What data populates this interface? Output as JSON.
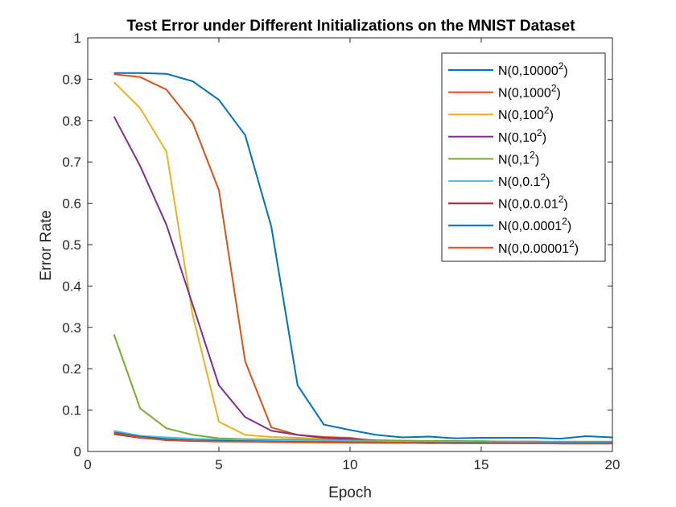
{
  "chart_data": {
    "type": "line",
    "title": "Test Error under Different Initializations on the MNIST Dataset",
    "xlabel": "Epoch",
    "ylabel": "Error Rate",
    "xlim": [
      0,
      20
    ],
    "ylim": [
      0,
      1
    ],
    "xticks": [
      0,
      5,
      10,
      15,
      20
    ],
    "yticks": [
      0,
      0.1,
      0.2,
      0.3,
      0.4,
      0.5,
      0.6,
      0.7,
      0.8,
      0.9,
      1
    ],
    "ytick_labels": [
      "0",
      "0.1",
      "0.2",
      "0.3",
      "0.4",
      "0.5",
      "0.6",
      "0.7",
      "0.8",
      "0.9",
      "1"
    ],
    "grid": false,
    "legend_position": "top-right",
    "x": [
      1,
      2,
      3,
      4,
      5,
      6,
      7,
      8,
      9,
      10,
      11,
      12,
      13,
      14,
      15,
      16,
      17,
      18,
      19,
      20
    ],
    "series": [
      {
        "name": "N(0,10000",
        "sup": "2",
        "suffix": ")",
        "color": "#0072BD",
        "values": [
          0.915,
          0.915,
          0.913,
          0.895,
          0.85,
          0.765,
          0.543,
          0.16,
          0.065,
          0.052,
          0.04,
          0.034,
          0.036,
          0.032,
          0.033,
          0.033,
          0.033,
          0.031,
          0.037,
          0.034
        ]
      },
      {
        "name": "N(0,1000",
        "sup": "2",
        "suffix": ")",
        "color": "#D95319",
        "values": [
          0.912,
          0.905,
          0.875,
          0.795,
          0.632,
          0.218,
          0.058,
          0.04,
          0.035,
          0.033,
          0.025,
          0.022,
          0.02,
          0.022,
          0.021,
          0.021,
          0.02,
          0.02,
          0.021,
          0.021
        ]
      },
      {
        "name": "N(0,100",
        "sup": "2",
        "suffix": ")",
        "color": "#EDB120",
        "values": [
          0.893,
          0.83,
          0.725,
          0.33,
          0.072,
          0.04,
          0.035,
          0.033,
          0.031,
          0.029,
          0.026,
          0.025,
          0.024,
          0.024,
          0.024,
          0.023,
          0.024,
          0.023,
          0.023,
          0.023
        ]
      },
      {
        "name": "N(0,10",
        "sup": "2",
        "suffix": ")",
        "color": "#7E2F8E",
        "values": [
          0.81,
          0.69,
          0.548,
          0.355,
          0.16,
          0.083,
          0.05,
          0.04,
          0.033,
          0.03,
          0.027,
          0.026,
          0.025,
          0.025,
          0.024,
          0.024,
          0.024,
          0.023,
          0.023,
          0.022
        ]
      },
      {
        "name": "N(0,1",
        "sup": "2",
        "suffix": ")",
        "color": "#77AC30",
        "values": [
          0.283,
          0.104,
          0.056,
          0.04,
          0.032,
          0.03,
          0.029,
          0.029,
          0.028,
          0.027,
          0.026,
          0.026,
          0.025,
          0.025,
          0.025,
          0.024,
          0.024,
          0.024,
          0.024,
          0.024
        ]
      },
      {
        "name": "N(0,0.1",
        "sup": "2",
        "suffix": ")",
        "color": "#4DBEEE",
        "values": [
          0.05,
          0.038,
          0.034,
          0.031,
          0.029,
          0.028,
          0.027,
          0.026,
          0.025,
          0.025,
          0.024,
          0.023,
          0.023,
          0.023,
          0.022,
          0.022,
          0.022,
          0.022,
          0.022,
          0.021
        ]
      },
      {
        "name": "N(0,0.0.01",
        "sup": "2",
        "suffix": ")",
        "color": "#A2142F",
        "values": [
          0.042,
          0.033,
          0.028,
          0.026,
          0.025,
          0.024,
          0.023,
          0.023,
          0.022,
          0.022,
          0.021,
          0.021,
          0.021,
          0.02,
          0.02,
          0.02,
          0.02,
          0.02,
          0.02,
          0.02
        ]
      },
      {
        "name": "N(0,0.0001",
        "sup": "2",
        "suffix": ")",
        "color": "#0072BD",
        "values": [
          0.046,
          0.036,
          0.03,
          0.027,
          0.026,
          0.025,
          0.024,
          0.023,
          0.023,
          0.022,
          0.022,
          0.021,
          0.021,
          0.021,
          0.021,
          0.02,
          0.02,
          0.02,
          0.02,
          0.02
        ]
      },
      {
        "name": "N(0,0.00001",
        "sup": "2",
        "suffix": ")",
        "color": "#D95319",
        "values": [
          0.044,
          0.034,
          0.027,
          0.025,
          0.024,
          0.024,
          0.023,
          0.022,
          0.022,
          0.021,
          0.021,
          0.021,
          0.02,
          0.02,
          0.02,
          0.02,
          0.02,
          0.019,
          0.019,
          0.019
        ]
      }
    ]
  }
}
